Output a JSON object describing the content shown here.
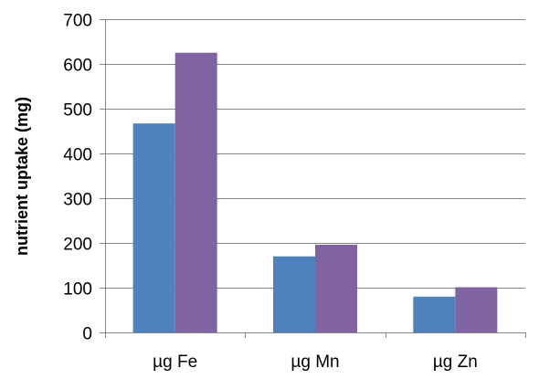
{
  "chart_data": {
    "type": "bar",
    "title": "",
    "xlabel": "",
    "ylabel": "nutrient uptake (mg)",
    "categories": [
      "µg Fe",
      "µg Mn",
      "µg Zn"
    ],
    "series": [
      {
        "values": [
          467,
          170,
          80
        ],
        "color": "#4f81bd"
      },
      {
        "values": [
          625,
          196,
          101
        ],
        "color": "#8064a2"
      }
    ],
    "ylim": [
      0,
      700
    ],
    "yticks": [
      0,
      100,
      200,
      300,
      400,
      500,
      600,
      700
    ],
    "grid": true,
    "legend": "none"
  }
}
